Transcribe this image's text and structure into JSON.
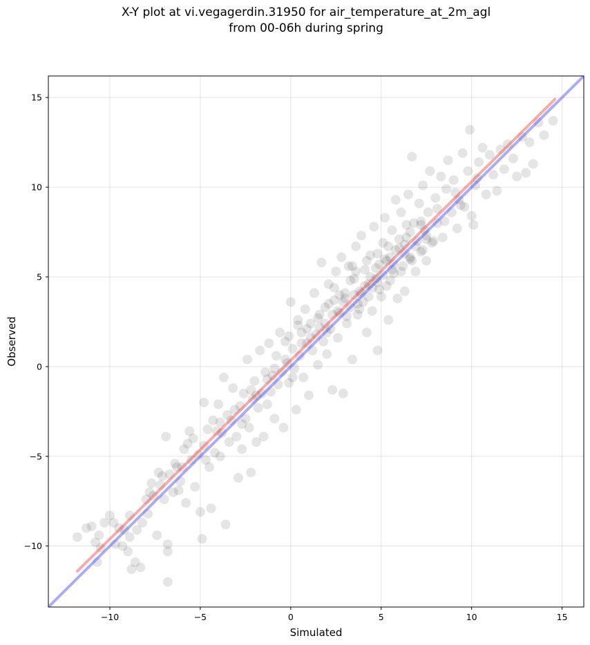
{
  "chart_data": {
    "type": "scatter",
    "title_line1": "X-Y plot at vi.vegagerdin.31950 for air_temperature_at_2m_agl",
    "title_line2": "from 00-06h during spring",
    "xlabel": "Simulated",
    "ylabel": "Observed",
    "xlim": [
      -13.4,
      16.2
    ],
    "ylim": [
      -13.4,
      16.2
    ],
    "xticks": [
      -10,
      -5,
      0,
      5,
      10,
      15
    ],
    "yticks": [
      -10,
      -5,
      0,
      5,
      10,
      15
    ],
    "xtick_labels": [
      "−10",
      "−5",
      "0",
      "5",
      "10",
      "15"
    ],
    "ytick_labels": [
      "−10",
      "−5",
      "0",
      "5",
      "10",
      "15"
    ],
    "grid": true,
    "legend": "none",
    "colors": {
      "points": "#000000",
      "regression_line": "#ee4444",
      "identity_line": "#4444ee"
    },
    "series": [
      {
        "kind": "scatter",
        "points": [
          [
            -11.8,
            -9.5
          ],
          [
            -11.3,
            -9.0
          ],
          [
            -11.0,
            -8.9
          ],
          [
            -10.8,
            -9.8
          ],
          [
            -10.6,
            -9.4
          ],
          [
            -10.5,
            -10.1
          ],
          [
            -10.3,
            -8.7
          ],
          [
            -10.0,
            -8.3
          ],
          [
            -9.8,
            -8.7
          ],
          [
            -9.5,
            -9.0
          ],
          [
            -9.3,
            -10.0
          ],
          [
            -9.2,
            -9.1
          ],
          [
            -9.0,
            -10.3
          ],
          [
            -8.9,
            -9.5
          ],
          [
            -8.8,
            -11.3
          ],
          [
            -8.6,
            -10.9
          ],
          [
            -8.5,
            -9.1
          ],
          [
            -8.3,
            -11.2
          ],
          [
            -8.2,
            -8.7
          ],
          [
            -8.0,
            -7.4
          ],
          [
            -7.9,
            -8.2
          ],
          [
            -7.7,
            -6.5
          ],
          [
            -7.6,
            -7.2
          ],
          [
            -7.4,
            -9.4
          ],
          [
            -7.3,
            -5.9
          ],
          [
            -7.1,
            -6.1
          ],
          [
            -7.0,
            -7.4
          ],
          [
            -6.9,
            -3.9
          ],
          [
            -6.8,
            -9.9
          ],
          [
            -6.8,
            -10.3
          ],
          [
            -6.8,
            -12.0
          ],
          [
            -6.7,
            -6.0
          ],
          [
            -6.5,
            -7.0
          ],
          [
            -6.4,
            -5.4
          ],
          [
            -6.2,
            -6.9
          ],
          [
            -6.0,
            -5.6
          ],
          [
            -5.9,
            -4.6
          ],
          [
            -5.8,
            -7.6
          ],
          [
            -5.6,
            -3.6
          ],
          [
            -5.5,
            -5.2
          ],
          [
            -5.4,
            -4.0
          ],
          [
            -5.3,
            -6.7
          ],
          [
            -5.1,
            -4.9
          ],
          [
            -5.0,
            -8.1
          ],
          [
            -4.9,
            -9.6
          ],
          [
            -4.8,
            -2.0
          ],
          [
            -4.8,
            -4.4
          ],
          [
            -4.6,
            -3.5
          ],
          [
            -4.5,
            -5.6
          ],
          [
            -4.4,
            -7.9
          ],
          [
            -4.3,
            -3.0
          ],
          [
            -4.2,
            -4.8
          ],
          [
            -4.0,
            -2.1
          ],
          [
            -3.9,
            -5.0
          ],
          [
            -3.8,
            -3.7
          ],
          [
            -3.7,
            -0.6
          ],
          [
            -3.6,
            -8.8
          ],
          [
            -3.5,
            -2.7
          ],
          [
            -3.4,
            -4.2
          ],
          [
            -3.3,
            -3.0
          ],
          [
            -3.2,
            -1.2
          ],
          [
            -3.0,
            -3.9
          ],
          [
            -2.9,
            -6.2
          ],
          [
            -2.8,
            -2.2
          ],
          [
            -2.7,
            -4.6
          ],
          [
            -2.6,
            -1.5
          ],
          [
            -2.5,
            -2.9
          ],
          [
            -2.4,
            0.4
          ],
          [
            -2.3,
            -3.4
          ],
          [
            -2.2,
            -5.9
          ],
          [
            -2.1,
            -1.8
          ],
          [
            -2.0,
            -0.8
          ],
          [
            -1.9,
            -4.2
          ],
          [
            -1.8,
            -2.3
          ],
          [
            -1.7,
            0.9
          ],
          [
            -1.6,
            -1.5
          ],
          [
            -1.5,
            -3.9
          ],
          [
            -1.4,
            -0.3
          ],
          [
            -1.3,
            -2.1
          ],
          [
            -1.2,
            1.3
          ],
          [
            -1.1,
            -1.4
          ],
          [
            -1.0,
            -0.5
          ],
          [
            -0.9,
            -2.9
          ],
          [
            -0.8,
            0.6
          ],
          [
            -0.7,
            -1.0
          ],
          [
            -0.6,
            1.9
          ],
          [
            -0.5,
            -0.3
          ],
          [
            -0.4,
            -3.4
          ],
          [
            -0.3,
            1.4
          ],
          [
            -0.2,
            0.2
          ],
          [
            -0.1,
            -0.9
          ],
          [
            0.0,
            3.6
          ],
          [
            0.1,
            1.0
          ],
          [
            0.2,
            -0.1
          ],
          [
            0.3,
            -2.4
          ],
          [
            0.4,
            2.3
          ],
          [
            0.5,
            0.6
          ],
          [
            0.6,
            1.9
          ],
          [
            0.7,
            -0.6
          ],
          [
            0.8,
            3.2
          ],
          [
            0.9,
            1.3
          ],
          [
            1.0,
            -1.6
          ],
          [
            1.1,
            2.4
          ],
          [
            1.2,
            0.9
          ],
          [
            1.3,
            4.1
          ],
          [
            1.4,
            1.8
          ],
          [
            1.5,
            0.1
          ],
          [
            1.6,
            2.9
          ],
          [
            1.7,
            5.8
          ],
          [
            1.8,
            1.4
          ],
          [
            1.9,
            3.3
          ],
          [
            2.0,
            0.7
          ],
          [
            2.1,
            4.6
          ],
          [
            2.2,
            2.1
          ],
          [
            2.3,
            -1.3
          ],
          [
            2.4,
            3.7
          ],
          [
            2.5,
            5.3
          ],
          [
            2.6,
            1.6
          ],
          [
            2.7,
            3.0
          ],
          [
            2.8,
            6.1
          ],
          [
            2.9,
            -1.5
          ],
          [
            3.0,
            4.1
          ],
          [
            3.1,
            2.4
          ],
          [
            3.2,
            5.6
          ],
          [
            3.3,
            3.3
          ],
          [
            3.4,
            0.4
          ],
          [
            3.5,
            4.9
          ],
          [
            3.6,
            6.7
          ],
          [
            3.7,
            2.9
          ],
          [
            3.8,
            4.2
          ],
          [
            3.9,
            7.3
          ],
          [
            4.0,
            3.6
          ],
          [
            4.1,
            5.4
          ],
          [
            4.2,
            1.9
          ],
          [
            4.3,
            4.6
          ],
          [
            4.4,
            6.2
          ],
          [
            4.5,
            3.1
          ],
          [
            4.6,
            7.8
          ],
          [
            4.7,
            4.9
          ],
          [
            4.8,
            0.9
          ],
          [
            4.9,
            5.7
          ],
          [
            5.0,
            3.9
          ],
          [
            5.1,
            6.9
          ],
          [
            5.2,
            8.3
          ],
          [
            5.3,
            4.5
          ],
          [
            5.4,
            2.6
          ],
          [
            5.5,
            6.1
          ],
          [
            5.6,
            7.6
          ],
          [
            5.7,
            5.2
          ],
          [
            5.8,
            9.3
          ],
          [
            5.9,
            3.8
          ],
          [
            6.0,
            6.6
          ],
          [
            6.1,
            8.6
          ],
          [
            6.2,
            5.6
          ],
          [
            6.3,
            4.2
          ],
          [
            6.4,
            7.2
          ],
          [
            6.5,
            9.6
          ],
          [
            6.6,
            6.0
          ],
          [
            6.7,
            11.7
          ],
          [
            6.8,
            8.0
          ],
          [
            6.9,
            5.3
          ],
          [
            7.0,
            7.0
          ],
          [
            7.1,
            9.1
          ],
          [
            7.2,
            6.4
          ],
          [
            7.3,
            10.1
          ],
          [
            7.4,
            7.6
          ],
          [
            7.5,
            5.9
          ],
          [
            7.6,
            8.6
          ],
          [
            7.7,
            10.9
          ],
          [
            7.8,
            6.9
          ],
          [
            8.0,
            9.4
          ],
          [
            8.1,
            8.0
          ],
          [
            8.3,
            10.6
          ],
          [
            8.4,
            7.2
          ],
          [
            8.6,
            9.9
          ],
          [
            8.7,
            11.5
          ],
          [
            8.9,
            8.6
          ],
          [
            9.0,
            10.4
          ],
          [
            9.2,
            7.7
          ],
          [
            9.3,
            9.3
          ],
          [
            9.5,
            11.9
          ],
          [
            9.6,
            8.9
          ],
          [
            9.8,
            10.9
          ],
          [
            9.9,
            13.2
          ],
          [
            10.0,
            8.4
          ],
          [
            10.1,
            7.9
          ],
          [
            10.2,
            10.1
          ],
          [
            10.4,
            11.4
          ],
          [
            10.6,
            12.2
          ],
          [
            10.8,
            9.6
          ],
          [
            11.0,
            11.8
          ],
          [
            11.2,
            10.7
          ],
          [
            11.4,
            9.8
          ],
          [
            11.6,
            12.1
          ],
          [
            11.8,
            11.0
          ],
          [
            12.0,
            12.4
          ],
          [
            12.3,
            11.6
          ],
          [
            12.5,
            10.6
          ],
          [
            12.8,
            12.8
          ],
          [
            13.0,
            10.8
          ],
          [
            13.2,
            12.5
          ],
          [
            13.4,
            11.3
          ],
          [
            13.7,
            13.6
          ],
          [
            14.0,
            12.9
          ],
          [
            14.5,
            13.7
          ],
          [
            -9.7,
            -9.9
          ],
          [
            -8.9,
            -8.3
          ],
          [
            -7.8,
            -7.0
          ],
          [
            -6.3,
            -5.6
          ],
          [
            -5.7,
            -4.3
          ],
          [
            -4.1,
            -3.6
          ],
          [
            -3.1,
            -2.4
          ],
          [
            -2.2,
            -1.3
          ],
          [
            -1.3,
            -0.7
          ],
          [
            -0.3,
            0.4
          ],
          [
            0.6,
            1.3
          ],
          [
            1.6,
            2.2
          ],
          [
            2.6,
            3.1
          ],
          [
            3.5,
            4.0
          ],
          [
            4.4,
            5.0
          ],
          [
            5.3,
            5.9
          ],
          [
            6.3,
            6.8
          ],
          [
            7.2,
            7.9
          ],
          [
            8.1,
            8.8
          ],
          [
            9.1,
            9.7
          ],
          [
            -10.7,
            -10.9
          ],
          [
            -7.2,
            -6.6
          ],
          [
            -6.1,
            -6.4
          ],
          [
            -4.7,
            -5.2
          ],
          [
            -3.9,
            -3.1
          ],
          [
            -2.7,
            -3.2
          ],
          [
            -1.9,
            -1.6
          ],
          [
            -0.9,
            -0.1
          ],
          [
            0.1,
            -0.6
          ],
          [
            1.1,
            1.6
          ],
          [
            2.0,
            1.9
          ],
          [
            2.9,
            3.6
          ],
          [
            3.8,
            3.2
          ],
          [
            4.8,
            4.7
          ],
          [
            5.6,
            5.4
          ],
          [
            6.6,
            6.1
          ],
          [
            7.5,
            7.3
          ],
          [
            8.5,
            8.1
          ],
          [
            9.4,
            9.0
          ],
          [
            10.3,
            10.5
          ],
          [
            2.1,
            3.5
          ],
          [
            2.4,
            4.4
          ],
          [
            3.0,
            3.8
          ],
          [
            3.3,
            4.8
          ],
          [
            3.6,
            5.3
          ],
          [
            3.9,
            4.1
          ],
          [
            4.2,
            5.9
          ],
          [
            4.5,
            4.4
          ],
          [
            4.8,
            6.3
          ],
          [
            5.1,
            5.1
          ],
          [
            5.4,
            6.7
          ],
          [
            5.7,
            5.7
          ],
          [
            6.0,
            7.1
          ],
          [
            6.3,
            6.3
          ],
          [
            6.6,
            7.5
          ],
          [
            6.9,
            6.7
          ],
          [
            7.2,
            8.1
          ],
          [
            7.5,
            7.1
          ],
          [
            2.7,
            4.0
          ],
          [
            3.4,
            5.6
          ],
          [
            4.1,
            4.5
          ],
          [
            4.7,
            5.5
          ],
          [
            5.2,
            6.0
          ],
          [
            5.8,
            6.5
          ],
          [
            6.4,
            7.9
          ],
          [
            3.1,
            2.8
          ],
          [
            3.7,
            3.5
          ],
          [
            4.3,
            3.9
          ],
          [
            4.9,
            4.3
          ],
          [
            5.5,
            4.8
          ],
          [
            6.1,
            5.3
          ],
          [
            6.7,
            5.9
          ],
          [
            7.3,
            6.5
          ],
          [
            7.9,
            7.0
          ],
          [
            1.5,
            2.7
          ],
          [
            1.9,
            2.4
          ],
          [
            2.3,
            2.9
          ],
          [
            -0.1,
            1.7
          ],
          [
            0.4,
            2.6
          ],
          [
            0.9,
            2.1
          ]
        ]
      }
    ],
    "lines": [
      {
        "kind": "regression",
        "from": [
          -11.8,
          -11.4
        ],
        "to": [
          14.6,
          14.9
        ]
      },
      {
        "kind": "identity",
        "from": [
          -13.4,
          -13.4
        ],
        "to": [
          16.2,
          16.2
        ]
      }
    ]
  }
}
